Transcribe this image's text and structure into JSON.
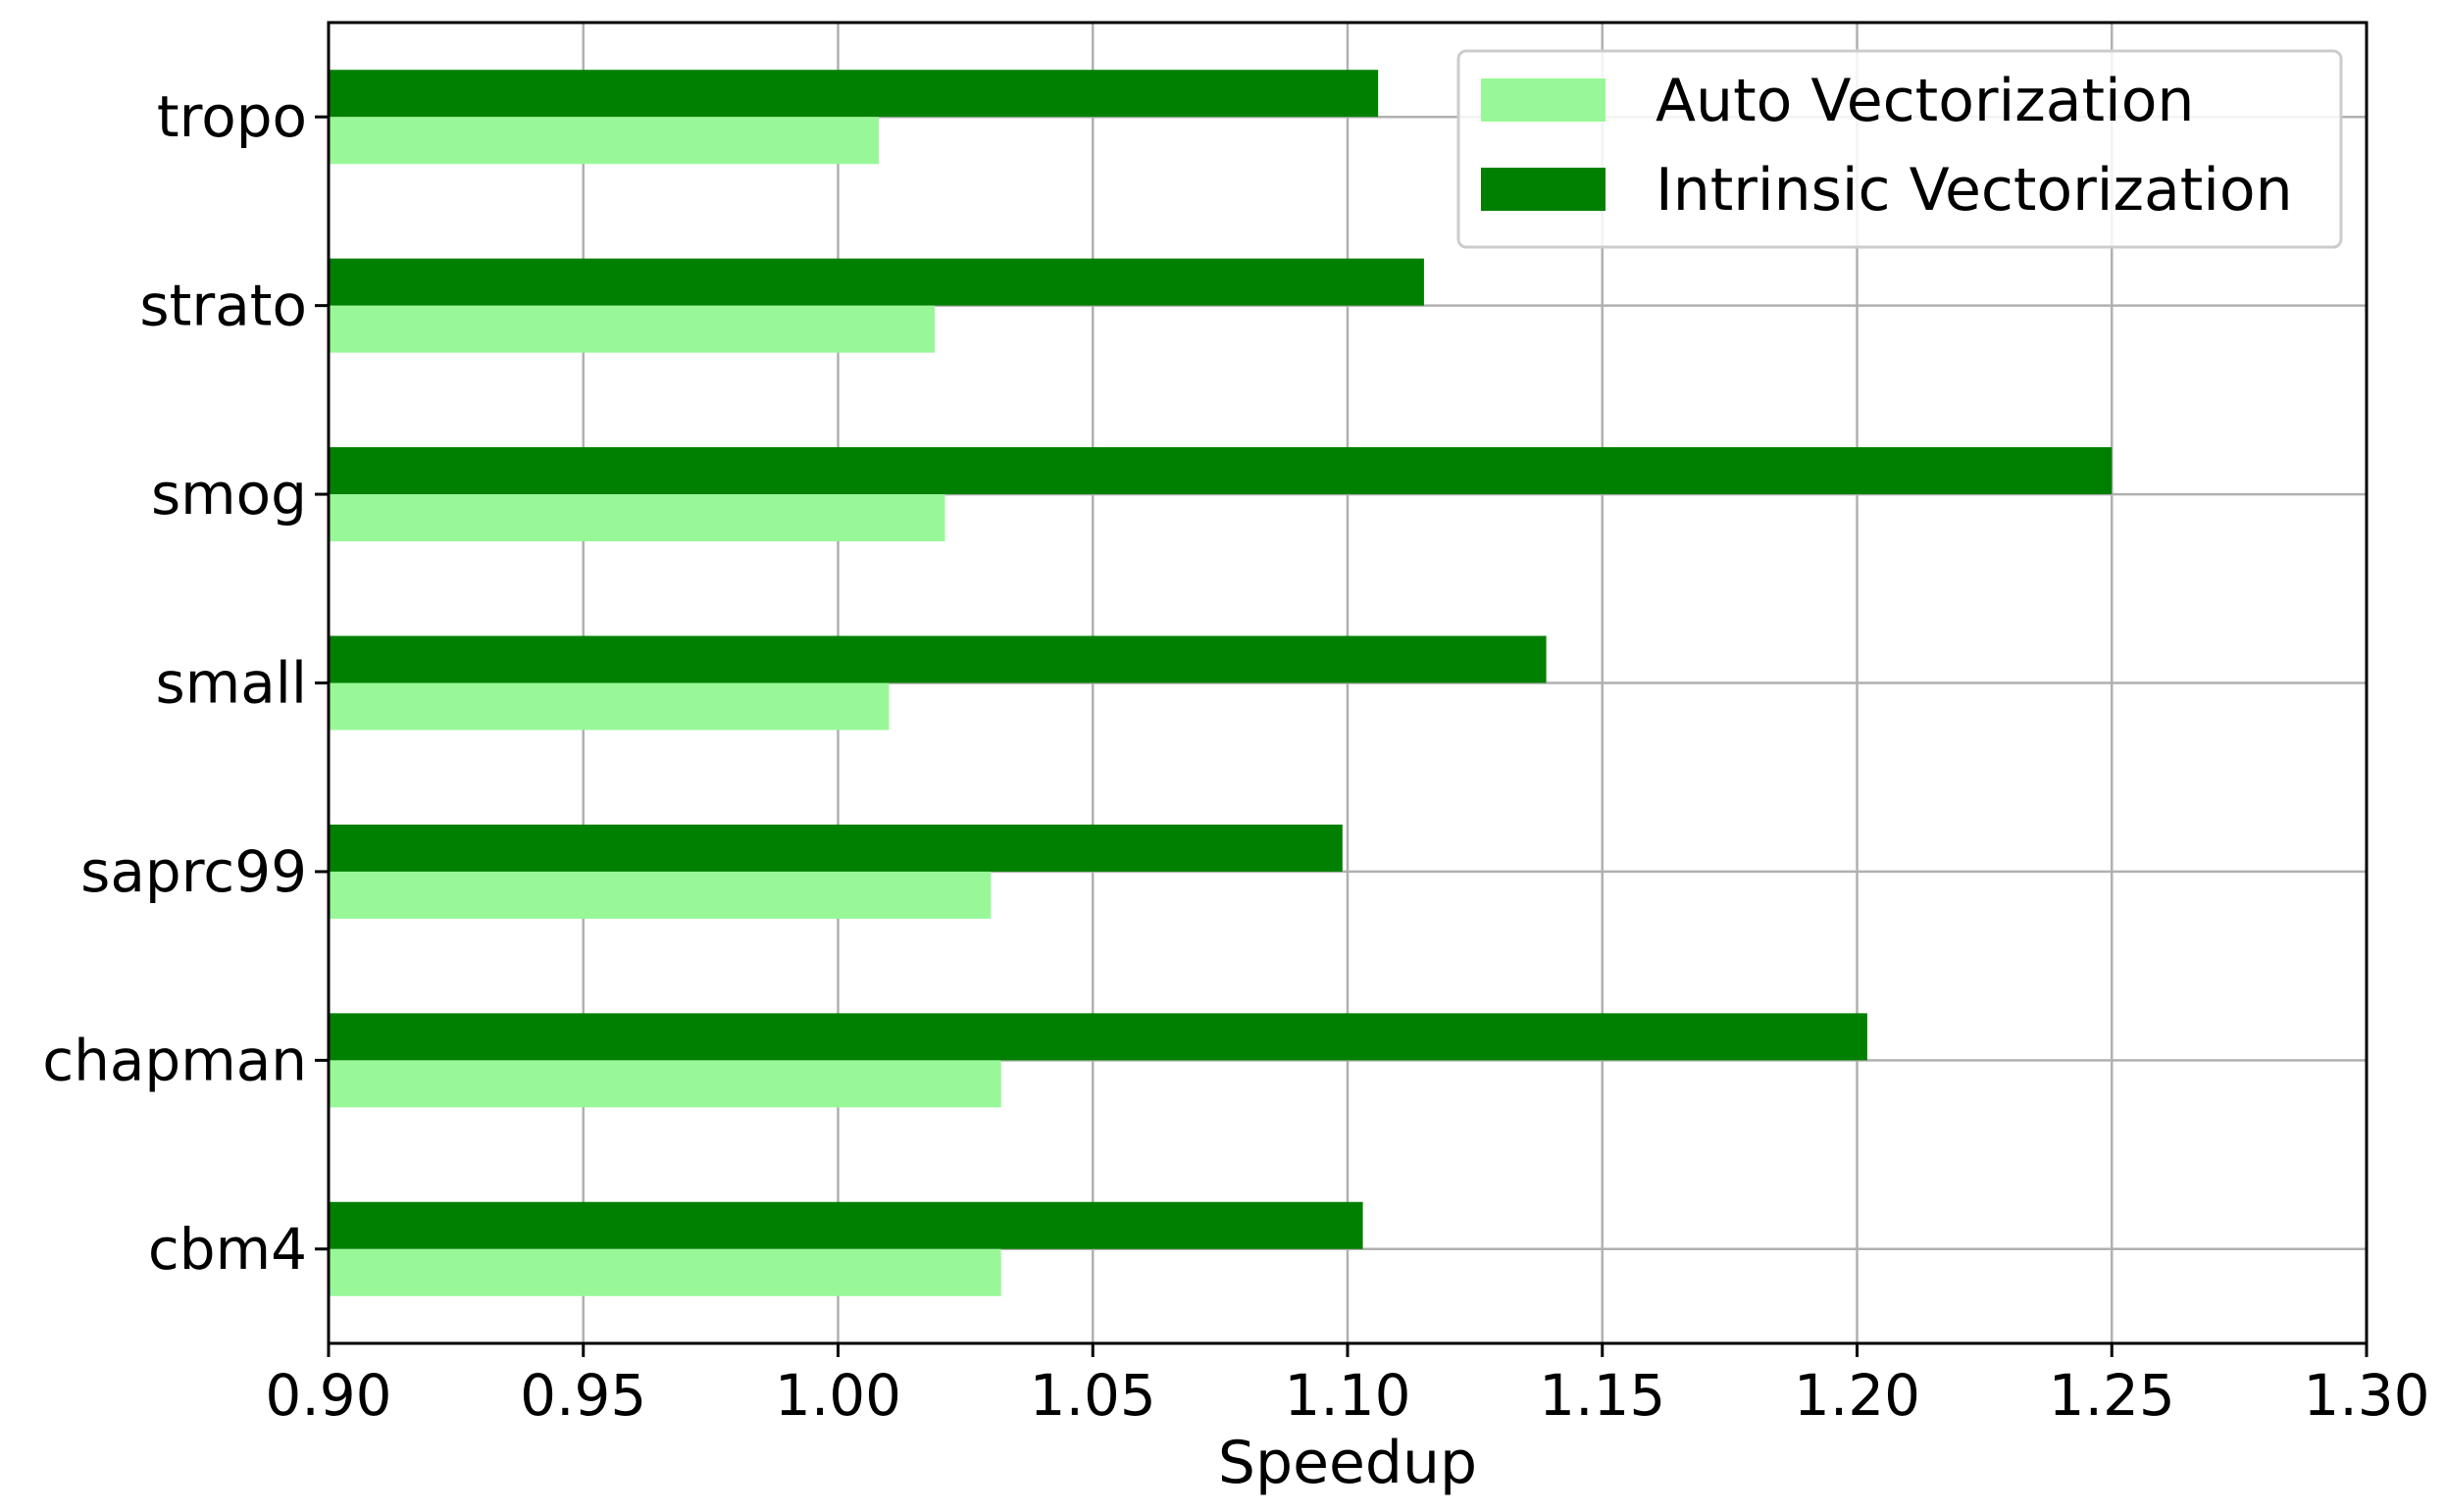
{
  "chart_data": {
    "type": "bar",
    "orientation": "horizontal",
    "title": "",
    "xlabel": "Speedup",
    "ylabel": "",
    "categories": [
      "tropo",
      "strato",
      "smog",
      "small",
      "saprc99",
      "chapman",
      "cbm4"
    ],
    "series": [
      {
        "name": "Auto Vectorization",
        "color": "#98f898",
        "values": [
          1.008,
          1.019,
          1.021,
          1.01,
          1.03,
          1.032,
          1.032
        ]
      },
      {
        "name": "Intrinsic Vectorization",
        "color": "#008000",
        "values": [
          1.106,
          1.115,
          1.25,
          1.139,
          1.099,
          1.202,
          1.103
        ]
      }
    ],
    "xlim": [
      0.9,
      1.3
    ],
    "xticks": [
      "0.90",
      "0.95",
      "1.00",
      "1.05",
      "1.10",
      "1.15",
      "1.20",
      "1.25",
      "1.30"
    ],
    "grid": true,
    "legend_position": "top-right"
  }
}
